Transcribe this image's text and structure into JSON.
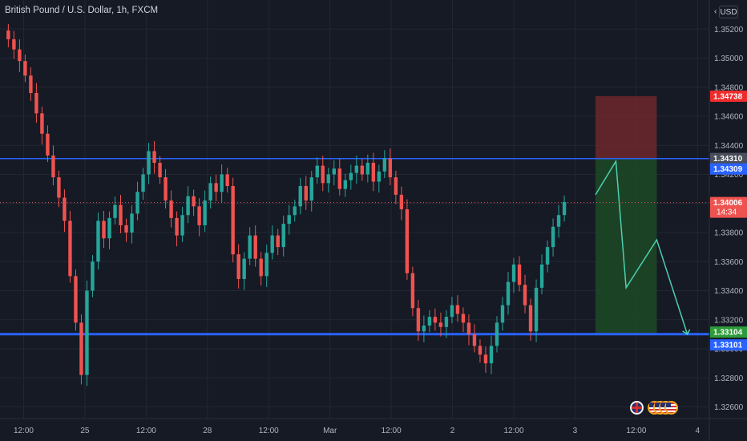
{
  "header": {
    "title": "British Pound / U.S. Dollar, 1h, FXCM"
  },
  "currency_button": "USD",
  "colors": {
    "background": "#161a25",
    "grid": "#232734",
    "up": "#26a69a",
    "down": "#ef5350",
    "level_line": "#2962ff",
    "projection": "#4dd0b1",
    "stop_zone": "#7a2a2e",
    "target_zone": "#1d4a27",
    "price_line": "#ef5350"
  },
  "price_badges": {
    "stop": "1.34738",
    "last_close": "1.34310",
    "upper_level": "1.34309",
    "current": "1.34006",
    "countdown": "14:34",
    "target": "1.33104",
    "lower_level": "1.33101"
  },
  "icons": [
    "gb-flag-icon",
    "us-flag-icon"
  ],
  "chart_data": {
    "type": "candlestick",
    "y_axis": {
      "range": [
        1.3252,
        1.354
      ],
      "ticks": [
        "1.35200",
        "1.35000",
        "1.34800",
        "1.34600",
        "1.34400",
        "1.34200",
        "1.34000",
        "1.33800",
        "1.33600",
        "1.33400",
        "1.33200",
        "1.33000",
        "1.32800",
        "1.32600"
      ]
    },
    "x_axis": {
      "range": [
        0,
        127
      ],
      "ticks": [
        {
          "x": 4,
          "label": "12:00"
        },
        {
          "x": 16,
          "label": "25"
        },
        {
          "x": 28,
          "label": "12:00"
        },
        {
          "x": 40,
          "label": "28"
        },
        {
          "x": 52,
          "label": "12:00"
        },
        {
          "x": 64,
          "label": "Mar"
        },
        {
          "x": 76,
          "label": "12:00"
        },
        {
          "x": 88,
          "label": "2"
        },
        {
          "x": 100,
          "label": "12:00"
        },
        {
          "x": 112,
          "label": "3"
        },
        {
          "x": 124,
          "label": "12:00"
        },
        {
          "x": 136,
          "label": "4"
        }
      ]
    },
    "levels": [
      1.34309,
      1.33101
    ],
    "current_price": 1.34006,
    "trade_box": {
      "x_start": 116,
      "x_end": 128,
      "stop": 1.34738,
      "entry": 1.34309,
      "target": 1.33104
    },
    "projection_path": [
      [
        116,
        1.3406
      ],
      [
        120,
        1.3429
      ],
      [
        122,
        1.3342
      ],
      [
        128,
        1.3375
      ],
      [
        134,
        1.331
      ]
    ],
    "close_series": [
      1.3513,
      1.3506,
      1.3498,
      1.3488,
      1.3476,
      1.3462,
      1.3448,
      1.3433,
      1.3418,
      1.3404,
      1.3388,
      1.335,
      1.3318,
      1.3282,
      1.334,
      1.336,
      1.3388,
      1.3376,
      1.339,
      1.3399,
      1.3385,
      1.338,
      1.3393,
      1.3408,
      1.342,
      1.3436,
      1.3428,
      1.3418,
      1.3402,
      1.339,
      1.3378,
      1.3392,
      1.3405,
      1.3398,
      1.3385,
      1.3402,
      1.3414,
      1.3408,
      1.342,
      1.3412,
      1.3365,
      1.3348,
      1.3362,
      1.3378,
      1.3362,
      1.335,
      1.3366,
      1.3378,
      1.337,
      1.3386,
      1.3392,
      1.3398,
      1.3412,
      1.3402,
      1.3418,
      1.3426,
      1.3414,
      1.342,
      1.3424,
      1.341,
      1.3416,
      1.3421,
      1.3426,
      1.342,
      1.3428,
      1.3415,
      1.3422,
      1.3431,
      1.3418,
      1.3406,
      1.3396,
      1.3352,
      1.3328,
      1.3312,
      1.3316,
      1.3322,
      1.3318,
      1.3315,
      1.3322,
      1.333,
      1.3324,
      1.3318,
      1.331,
      1.3302,
      1.3296,
      1.329,
      1.3302,
      1.3318,
      1.333,
      1.3346,
      1.3358,
      1.3344,
      1.333,
      1.3312,
      1.3342,
      1.3358,
      1.337,
      1.3384,
      1.3392,
      1.3401
    ]
  }
}
